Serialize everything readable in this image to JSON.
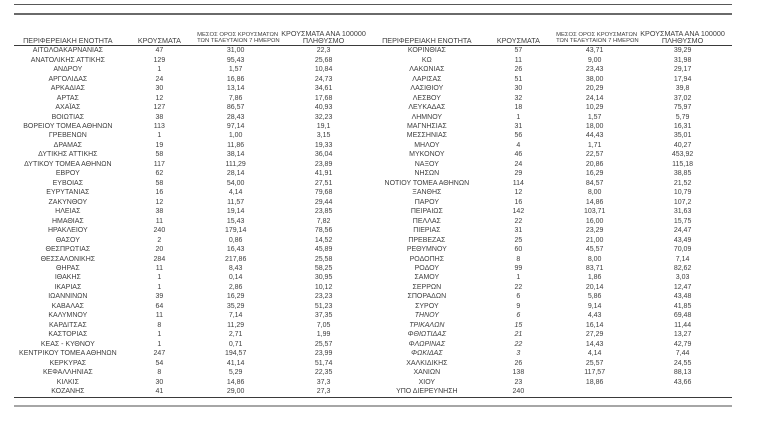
{
  "page": {
    "background": "#ffffff",
    "text_color": "#3e3e3e",
    "rule_dark_color": "#3a3a3a",
    "rule_gray_color": "#a6a6a6"
  },
  "headers": {
    "region": "ΠΕΡΙΦΕΡΕΙΑΚΗ ΕΝΟΤΗΤΑ",
    "cases": "ΚΡΟΥΣΜΑΤΑ",
    "avg7_line1": "ΜΕΣΟΣ ΟΡΟΣ ΚΡΟΥΣΜΑΤΩΝ",
    "avg7_line2": "ΤΩΝ ΤΕΛΕΥΤΑΙΩΝ 7 ΗΜΕΡΩΝ",
    "per100k_line1": "ΚΡΟΥΣΜΑΤΑ ΑΝΑ 100000",
    "per100k_line2": "ΠΛΗΘΥΣΜΟ"
  },
  "left_table": {
    "rows": [
      [
        "ΑΙΤΩΛΟΑΚΑΡΝΑΝΙΑΣ",
        "47",
        "31,00",
        "22,3"
      ],
      [
        "ΑΝΑΤΟΛΙΚΗΣ ΑΤΤΙΚΗΣ",
        "129",
        "95,43",
        "25,68"
      ],
      [
        "ΑΝΔΡΟΥ",
        "1",
        "1,57",
        "10,84"
      ],
      [
        "ΑΡΓΟΛΙΔΑΣ",
        "24",
        "16,86",
        "24,73"
      ],
      [
        "ΑΡΚΑΔΙΑΣ",
        "30",
        "13,14",
        "34,61"
      ],
      [
        "ΑΡΤΑΣ",
        "12",
        "7,86",
        "17,68"
      ],
      [
        "ΑΧΑΪΑΣ",
        "127",
        "86,57",
        "40,93"
      ],
      [
        "ΒΟΙΩΤΙΑΣ",
        "38",
        "28,43",
        "32,23"
      ],
      [
        "ΒΟΡΕΙΟΥ ΤΟΜΕΑ ΑΘΗΝΩΝ",
        "113",
        "97,14",
        "19,1"
      ],
      [
        "ΓΡΕΒΕΝΩΝ",
        "1",
        "1,00",
        "3,15"
      ],
      [
        "ΔΡΑΜΑΣ",
        "19",
        "11,86",
        "19,33"
      ],
      [
        "ΔΥΤΙΚΗΣ ΑΤΤΙΚΗΣ",
        "58",
        "38,14",
        "36,04"
      ],
      [
        "ΔΥΤΙΚΟΥ ΤΟΜΕΑ ΑΘΗΝΩΝ",
        "117",
        "111,29",
        "23,89"
      ],
      [
        "ΕΒΡΟΥ",
        "62",
        "28,14",
        "41,91"
      ],
      [
        "ΕΥΒΟΙΑΣ",
        "58",
        "54,00",
        "27,51"
      ],
      [
        "ΕΥΡΥΤΑΝΙΑΣ",
        "16",
        "4,14",
        "79,68"
      ],
      [
        "ΖΑΚΥΝΘΟΥ",
        "12",
        "11,57",
        "29,44"
      ],
      [
        "ΗΛΕΙΑΣ",
        "38",
        "19,14",
        "23,85"
      ],
      [
        "ΗΜΑΘΙΑΣ",
        "11",
        "15,43",
        "7,82"
      ],
      [
        "ΗΡΑΚΛΕΙΟΥ",
        "240",
        "179,14",
        "78,56"
      ],
      [
        "ΘΑΣΟΥ",
        "2",
        "0,86",
        "14,52"
      ],
      [
        "ΘΕΣΠΡΩΤΙΑΣ",
        "20",
        "16,43",
        "45,89"
      ],
      [
        "ΘΕΣΣΑΛΟΝΙΚΗΣ",
        "284",
        "217,86",
        "25,58"
      ],
      [
        "ΘΗΡΑΣ",
        "11",
        "8,43",
        "58,25"
      ],
      [
        "ΙΘΑΚΗΣ",
        "1",
        "0,14",
        "30,95"
      ],
      [
        "ΙΚΑΡΙΑΣ",
        "1",
        "2,86",
        "10,12"
      ],
      [
        "ΙΩΑΝΝΙΝΩΝ",
        "39",
        "16,29",
        "23,23"
      ],
      [
        "ΚΑΒΑΛΑΣ",
        "64",
        "35,29",
        "51,23"
      ],
      [
        "ΚΑΛΥΜΝΟΥ",
        "11",
        "7,14",
        "37,35"
      ],
      [
        "ΚΑΡΔΙΤΣΑΣ",
        "8",
        "11,29",
        "7,05"
      ],
      [
        "ΚΑΣΤΟΡΙΑΣ",
        "1",
        "2,71",
        "1,99"
      ],
      [
        "ΚΕΑΣ - ΚΥΘΝΟΥ",
        "1",
        "0,71",
        "25,57"
      ],
      [
        "ΚΕΝΤΡΙΚΟΥ ΤΟΜΕΑ ΑΘΗΝΩΝ",
        "247",
        "194,57",
        "23,99"
      ],
      [
        "ΚΕΡΚΥΡΑΣ",
        "54",
        "41,14",
        "51,74"
      ],
      [
        "ΚΕΦΑΛΛΗΝΙΑΣ",
        "8",
        "5,29",
        "22,35"
      ],
      [
        "ΚΙΛΚΙΣ",
        "30",
        "14,86",
        "37,3"
      ],
      [
        "ΚΟΖΑΝΗΣ",
        "41",
        "29,00",
        "27,3"
      ]
    ]
  },
  "right_table": {
    "rows": [
      [
        "ΚΟΡΙΝΘΙΑΣ",
        "57",
        "43,71",
        "39,29"
      ],
      [
        "ΚΩ",
        "11",
        "9,00",
        "31,98"
      ],
      [
        "ΛΑΚΩΝΙΑΣ",
        "26",
        "23,43",
        "29,17"
      ],
      [
        "ΛΑΡΙΣΑΣ",
        "51",
        "38,00",
        "17,94"
      ],
      [
        "ΛΑΣΙΘΙΟΥ",
        "30",
        "20,29",
        "39,8"
      ],
      [
        "ΛΕΣΒΟΥ",
        "32",
        "24,14",
        "37,02"
      ],
      [
        "ΛΕΥΚΑΔΑΣ",
        "18",
        "10,29",
        "75,97"
      ],
      [
        "ΛΗΜΝΟΥ",
        "1",
        "1,57",
        "5,79"
      ],
      [
        "ΜΑΓΝΗΣΙΑΣ",
        "31",
        "18,00",
        "16,31"
      ],
      [
        "ΜΕΣΣΗΝΙΑΣ",
        "56",
        "44,43",
        "35,01"
      ],
      [
        "ΜΗΛΟΥ",
        "4",
        "1,71",
        "40,27"
      ],
      [
        "ΜΥΚΟΝΟΥ",
        "46",
        "22,57",
        "453,92"
      ],
      [
        "ΝΑΞΟΥ",
        "24",
        "20,86",
        "115,18"
      ],
      [
        "ΝΗΣΩΝ",
        "29",
        "16,29",
        "38,85"
      ],
      [
        "ΝΟΤΙΟΥ ΤΟΜΕΑ ΑΘΗΝΩΝ",
        "114",
        "84,57",
        "21,52"
      ],
      [
        "ΞΑΝΘΗΣ",
        "12",
        "8,00",
        "10,79"
      ],
      [
        "ΠΑΡΟΥ",
        "16",
        "14,86",
        "107,2"
      ],
      [
        "ΠΕΙΡΑΙΩΣ",
        "142",
        "103,71",
        "31,63"
      ],
      [
        "ΠΕΛΛΑΣ",
        "22",
        "16,00",
        "15,75"
      ],
      [
        "ΠΙΕΡΙΑΣ",
        "31",
        "23,29",
        "24,47"
      ],
      [
        "ΠΡΕΒΕΖΑΣ",
        "25",
        "21,00",
        "43,49"
      ],
      [
        "ΡΕΘΥΜΝΟΥ",
        "60",
        "45,57",
        "70,09"
      ],
      [
        "ΡΟΔΟΠΗΣ",
        "8",
        "8,00",
        "7,14"
      ],
      [
        "ΡΟΔΟΥ",
        "99",
        "83,71",
        "82,62"
      ],
      [
        "ΣΑΜΟΥ",
        "1",
        "1,86",
        "3,03"
      ],
      [
        "ΣΕΡΡΩΝ",
        "22",
        "20,14",
        "12,47"
      ],
      [
        "ΣΠΟΡΑΔΩΝ",
        "6",
        "5,86",
        "43,48"
      ],
      [
        "ΣΥΡΟΥ",
        "9",
        "9,14",
        "41,85"
      ],
      [
        "ΤΗΝΟΥ",
        "6",
        "4,43",
        "69,48",
        true
      ],
      [
        "ΤΡΙΚΑΛΩΝ",
        "15",
        "16,14",
        "11,44",
        true
      ],
      [
        "ΦΘΙΩΤΙΔΑΣ",
        "21",
        "27,29",
        "13,27",
        true
      ],
      [
        "ΦΛΩΡΙΝΑΣ",
        "22",
        "14,43",
        "42,79",
        true
      ],
      [
        "ΦΩΚΙΔΑΣ",
        "3",
        "4,14",
        "7,44",
        true
      ],
      [
        "ΧΑΛΚΙΔΙΚΗΣ",
        "26",
        "25,57",
        "24,55"
      ],
      [
        "ΧΑΝΙΩΝ",
        "138",
        "117,57",
        "88,13"
      ],
      [
        "ΧΙΟΥ",
        "23",
        "18,86",
        "43,66"
      ],
      [
        "ΥΠΟ ΔΙΕΡΕΥΝΗΣΗ",
        "240",
        "",
        ""
      ]
    ]
  }
}
